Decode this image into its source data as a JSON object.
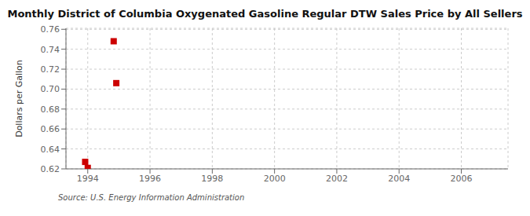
{
  "chart_data": {
    "type": "scatter",
    "title": "Monthly District of Columbia Oxygenated Gasoline Regular DTW Sales Price by All Sellers",
    "ylabel": "Dollars per Gallon",
    "annotations": [
      "Source: U.S. Energy Information Administration"
    ],
    "x": [
      1993.917,
      1994.0,
      1994.833,
      1994.917
    ],
    "values": [
      0.627,
      0.621,
      0.748,
      0.706
    ],
    "color": "#cc0000",
    "marker": "square",
    "xlim": [
      1993.3,
      2007.5
    ],
    "ylim": [
      0.62,
      0.761
    ],
    "xticks": [
      1994,
      1996,
      1998,
      2000,
      2002,
      2004,
      2006
    ],
    "yticks": [
      0.62,
      0.64,
      0.66,
      0.68,
      {
        "value": 0.7,
        "label": "0.70"
      },
      0.72,
      0.74,
      0.76
    ],
    "grid": true
  }
}
